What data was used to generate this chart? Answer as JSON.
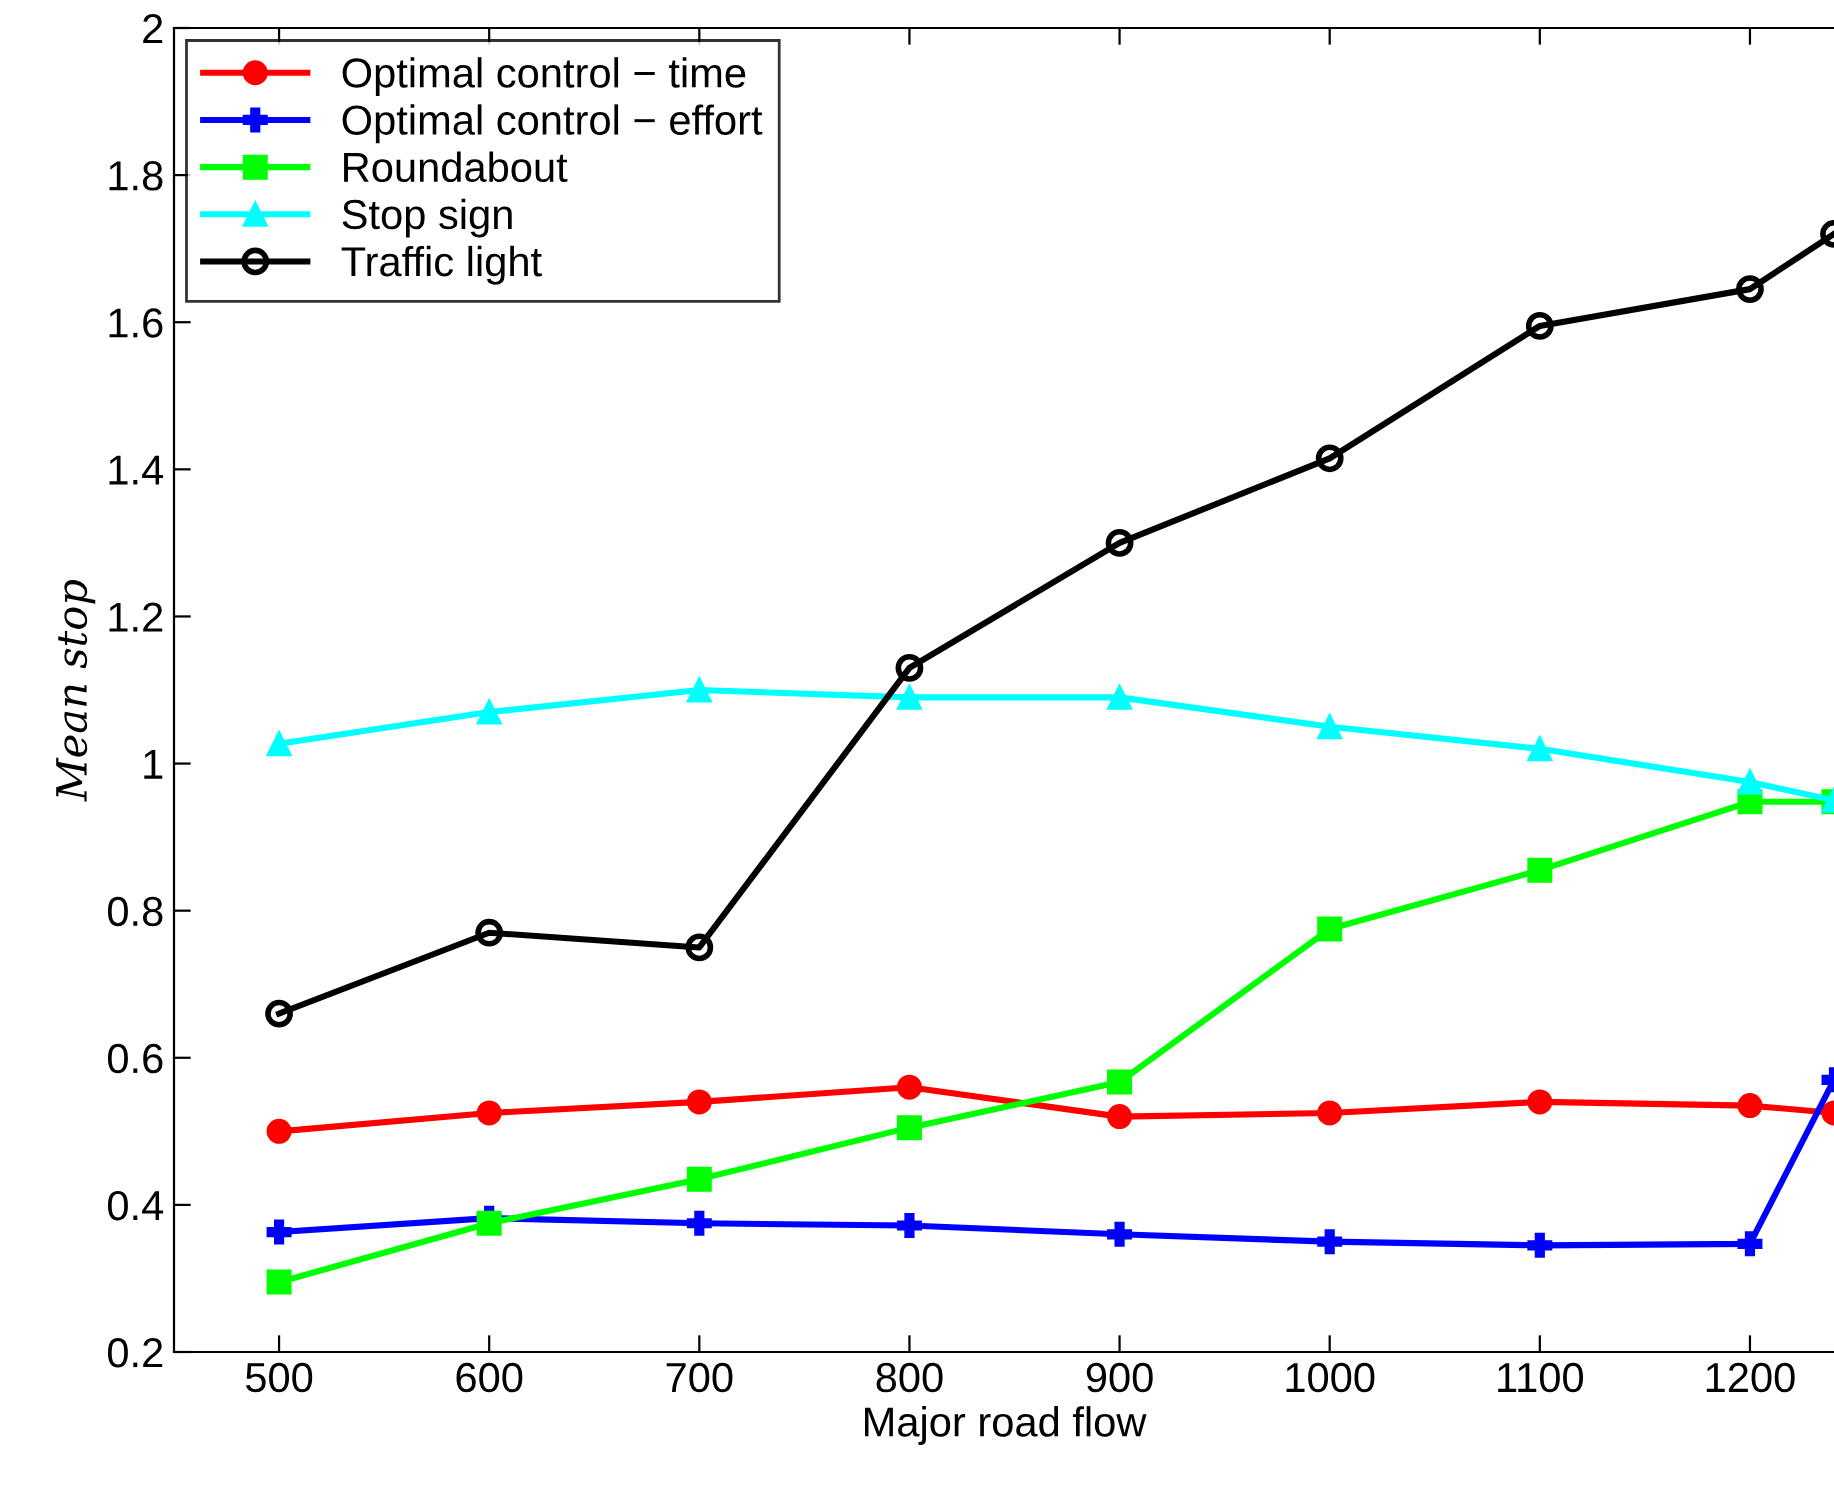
{
  "chart_data": {
    "type": "line",
    "xlabel": "Major road flow",
    "ylabel": "Mean stop",
    "x": [
      500,
      600,
      700,
      800,
      900,
      1000,
      1100,
      1200,
      1240
    ],
    "series": [
      {
        "name": "Optimal control − time",
        "color": "#ff0000",
        "marker": "circle",
        "values": [
          0.5,
          0.525,
          0.54,
          0.56,
          0.52,
          0.525,
          0.54,
          0.535,
          0.525
        ]
      },
      {
        "name": "Optimal control − effort",
        "color": "#0000ff",
        "marker": "cross",
        "values": [
          0.363,
          0.382,
          0.375,
          0.372,
          0.36,
          0.35,
          0.345,
          0.347,
          0.57
        ]
      },
      {
        "name": "Roundabout",
        "color": "#00ff00",
        "marker": "square",
        "values": [
          0.295,
          0.375,
          0.435,
          0.505,
          0.567,
          0.775,
          0.855,
          0.948,
          0.948
        ]
      },
      {
        "name": "Stop sign",
        "color": "#00ffff",
        "marker": "triangle",
        "values": [
          1.027,
          1.07,
          1.1,
          1.09,
          1.09,
          1.05,
          1.02,
          0.975,
          0.95
        ]
      },
      {
        "name": "Traffic light",
        "color": "#000000",
        "marker": "circle",
        "values": [
          0.66,
          0.77,
          0.75,
          1.13,
          1.3,
          1.415,
          1.595,
          1.645,
          1.72
        ]
      }
    ],
    "xlim": [
      450,
      1240
    ],
    "xticks": [
      500,
      600,
      700,
      800,
      900,
      1000,
      1100,
      1200
    ],
    "ylim": [
      0.2,
      2
    ],
    "yticks": [
      0.2,
      0.4,
      0.6,
      0.8,
      1,
      1.2,
      1.4,
      1.6,
      1.8,
      2
    ],
    "grid": false,
    "legend": "top left",
    "line_style": "solid"
  }
}
